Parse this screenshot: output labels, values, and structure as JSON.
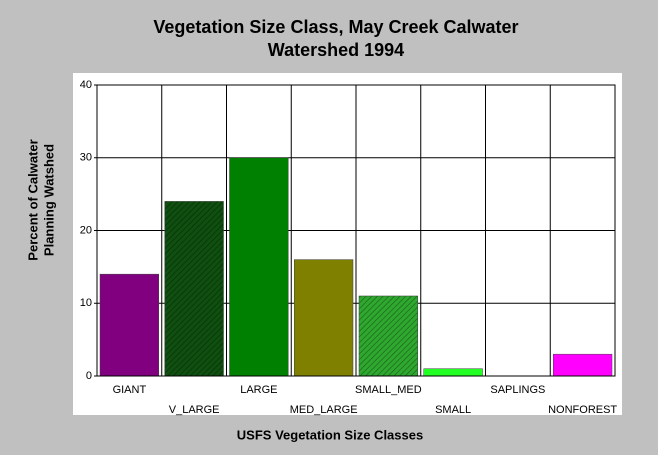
{
  "chart_data": {
    "type": "bar",
    "title": [
      "Vegetation Size Class, May Creek Calwater",
      "Watershed 1994"
    ],
    "ylabel": [
      "Percent of Calwater",
      "Planning Watshed"
    ],
    "xlabel": "USFS Vegetation Size Classes",
    "categories": [
      "GIANT",
      "V_LARGE",
      "LARGE",
      "MED_LARGE",
      "SMALL_MED",
      "SMALL",
      "SAPLINGS",
      "NONFOREST"
    ],
    "values": [
      14,
      24,
      30,
      16,
      11,
      1,
      0,
      3
    ],
    "colors": [
      "#800080",
      "#0f4f0f",
      "#008000",
      "#808000",
      "#2ea82e",
      "#22ff22",
      "#808080",
      "#ff00ff"
    ],
    "hatched": [
      false,
      true,
      false,
      false,
      true,
      false,
      false,
      false
    ],
    "ylim": [
      0,
      40
    ],
    "yticks": [
      0,
      10,
      20,
      30,
      40
    ],
    "grid": true
  }
}
